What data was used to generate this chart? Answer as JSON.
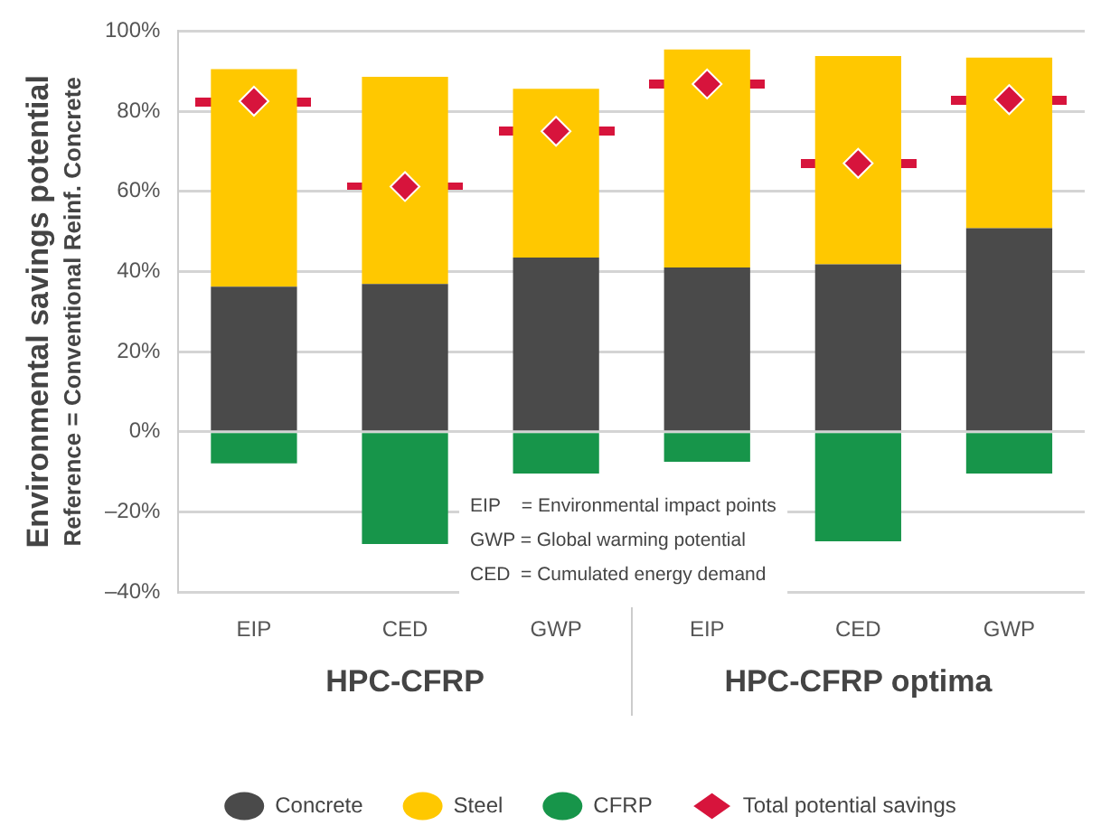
{
  "chart_data": {
    "type": "bar",
    "stacked": true,
    "ylabel": "Environmental savings potential\nReference = Conventional Reinf. Concrete",
    "categories": [
      "EIP",
      "CED",
      "GWP",
      "EIP",
      "CED",
      "GWP"
    ],
    "series": [
      {
        "name": "Concrete",
        "color": "#4a4a4a",
        "values": [
          36.2,
          36.9,
          43.5,
          41,
          41.8,
          50.8
        ]
      },
      {
        "name": "Steel",
        "color": "#ffc800",
        "values": [
          54.3,
          51.7,
          42.1,
          54.4,
          52,
          42.6
        ]
      },
      {
        "name": "CFRP",
        "color": "#17954a",
        "values": [
          -7.9,
          -28,
          -10.4,
          -7.5,
          -27.3,
          -10.4
        ]
      },
      {
        "name": "Total potential savings",
        "type": "scatter",
        "marker": "diamond",
        "color": "#d7143c",
        "values": [
          82.5,
          61.2,
          75,
          86.8,
          67,
          82.9
        ]
      }
    ],
    "ylim": [
      -40,
      100
    ],
    "yticks": [
      {
        "value": -40,
        "label": "–40%"
      },
      {
        "value": -20,
        "label": "–20%"
      },
      {
        "value": 0,
        "label": "0%"
      },
      {
        "value": 20,
        "label": "20%"
      },
      {
        "value": 40,
        "label": "40%"
      },
      {
        "value": 60,
        "label": "60%"
      },
      {
        "value": 80,
        "label": "80%"
      },
      {
        "value": 100,
        "label": "100%"
      }
    ],
    "grid": "y",
    "legend": "bottom",
    "annotations": [
      "HPC-CFRP",
      "HPC-CFRP optima",
      "EIP    = Environmental impact points",
      "GWP = Global warming potential",
      "CED  = Cumulated energy demand"
    ]
  }
}
